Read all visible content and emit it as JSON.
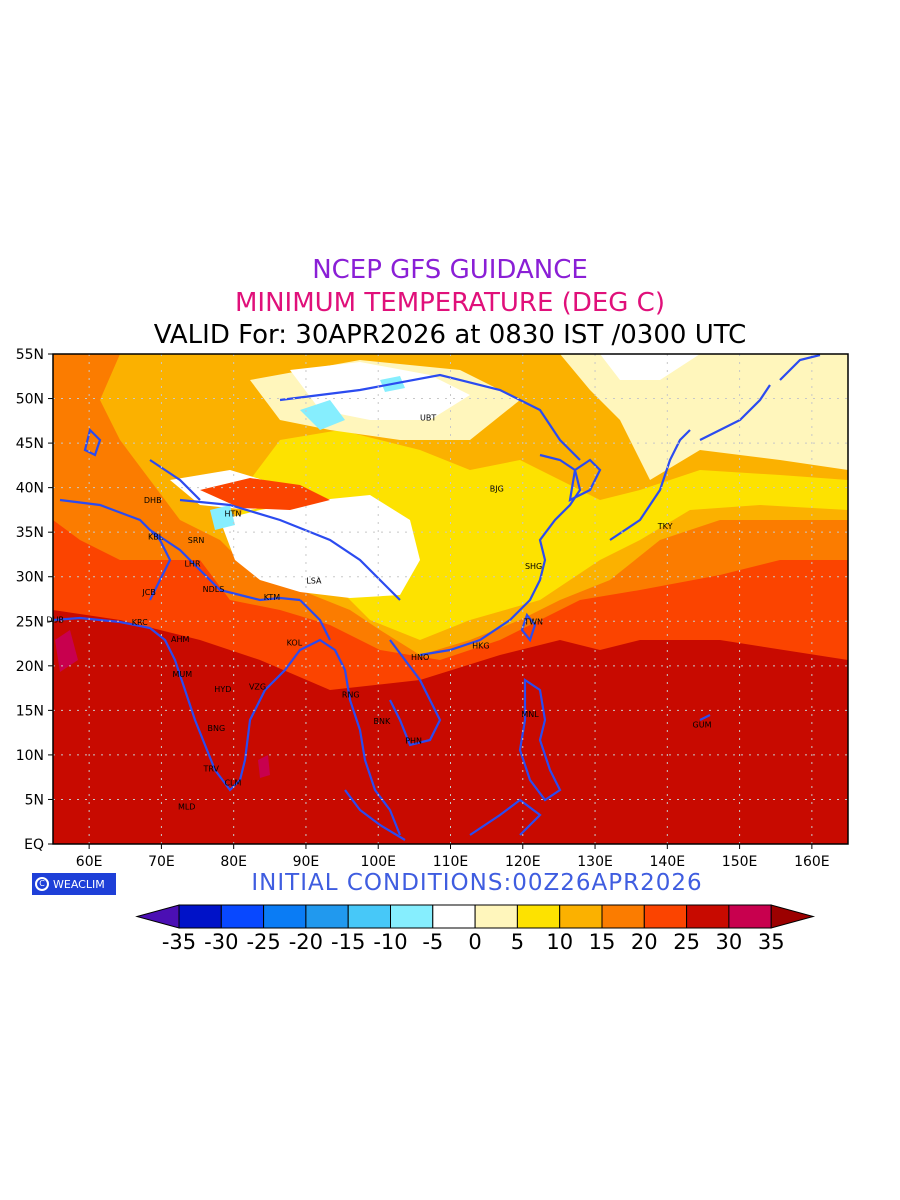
{
  "header": {
    "line1": "NCEP GFS GUIDANCE",
    "line2": "MINIMUM TEMPERATURE (DEG C)",
    "line3": "VALID For: 30APR2026 at 0830 IST /0300 UTC"
  },
  "footer": {
    "logo_text": "WEACLIM",
    "initial_conditions": "INITIAL CONDITIONS:00Z26APR2026"
  },
  "axes": {
    "lat_labels": [
      "55N",
      "50N",
      "45N",
      "40N",
      "35N",
      "30N",
      "25N",
      "20N",
      "15N",
      "10N",
      "5N",
      "EQ"
    ],
    "lon_labels": [
      "60E",
      "70E",
      "80E",
      "90E",
      "100E",
      "110E",
      "120E",
      "130E",
      "140E",
      "150E",
      "160E"
    ]
  },
  "colorbar": {
    "labels": [
      "-35",
      "-30",
      "-25",
      "-20",
      "-15",
      "-10",
      "-5",
      "0",
      "5",
      "10",
      "15",
      "20",
      "25",
      "30",
      "35"
    ],
    "colors": [
      "#4b0fb4",
      "#0012c8",
      "#0848ff",
      "#0a7cf5",
      "#2199ee",
      "#47c8f8",
      "#86eefe",
      "#ffffff",
      "#fff6bc",
      "#fde200",
      "#fbb100",
      "#fb7c00",
      "#fb4400",
      "#c80a00",
      "#c8004e",
      "#9c0000"
    ]
  },
  "cities": [
    {
      "code": "UBT",
      "lon": 106.9,
      "lat": 47.9
    },
    {
      "code": "BJG",
      "lon": 116.4,
      "lat": 39.9
    },
    {
      "code": "DHB",
      "lon": 68.8,
      "lat": 38.6
    },
    {
      "code": "HTN",
      "lon": 79.9,
      "lat": 37.1
    },
    {
      "code": "KBL",
      "lon": 69.2,
      "lat": 34.5
    },
    {
      "code": "SRN",
      "lon": 74.8,
      "lat": 34.1
    },
    {
      "code": "TKY",
      "lon": 139.7,
      "lat": 35.7
    },
    {
      "code": "LHR",
      "lon": 74.3,
      "lat": 31.5
    },
    {
      "code": "SHG",
      "lon": 121.5,
      "lat": 31.2
    },
    {
      "code": "LSA",
      "lon": 91.1,
      "lat": 29.6
    },
    {
      "code": "JCB",
      "lon": 68.3,
      "lat": 28.3
    },
    {
      "code": "NDLS",
      "lon": 77.2,
      "lat": 28.6
    },
    {
      "code": "KTM",
      "lon": 85.3,
      "lat": 27.7
    },
    {
      "code": "DUB",
      "lon": 55.3,
      "lat": 25.2
    },
    {
      "code": "KRC",
      "lon": 67.0,
      "lat": 24.9
    },
    {
      "code": "TWN",
      "lon": 121.5,
      "lat": 25.0
    },
    {
      "code": "AHM",
      "lon": 72.6,
      "lat": 23.0
    },
    {
      "code": "KOL",
      "lon": 88.4,
      "lat": 22.6
    },
    {
      "code": "HKG",
      "lon": 114.2,
      "lat": 22.3
    },
    {
      "code": "HNO",
      "lon": 105.8,
      "lat": 21.0
    },
    {
      "code": "MUM",
      "lon": 72.9,
      "lat": 19.1
    },
    {
      "code": "HYD",
      "lon": 78.5,
      "lat": 17.4
    },
    {
      "code": "VZG",
      "lon": 83.3,
      "lat": 17.7
    },
    {
      "code": "RNG",
      "lon": 96.2,
      "lat": 16.8
    },
    {
      "code": "MNL",
      "lon": 121.0,
      "lat": 14.6
    },
    {
      "code": "BNK",
      "lon": 100.5,
      "lat": 13.8
    },
    {
      "code": "GUM",
      "lon": 144.8,
      "lat": 13.4
    },
    {
      "code": "BNG",
      "lon": 77.6,
      "lat": 13.0
    },
    {
      "code": "PHN",
      "lon": 104.9,
      "lat": 11.6
    },
    {
      "code": "TRV",
      "lon": 76.9,
      "lat": 8.5
    },
    {
      "code": "CLM",
      "lon": 79.9,
      "lat": 6.9
    },
    {
      "code": "MLD",
      "lon": 73.5,
      "lat": 4.2
    }
  ]
}
